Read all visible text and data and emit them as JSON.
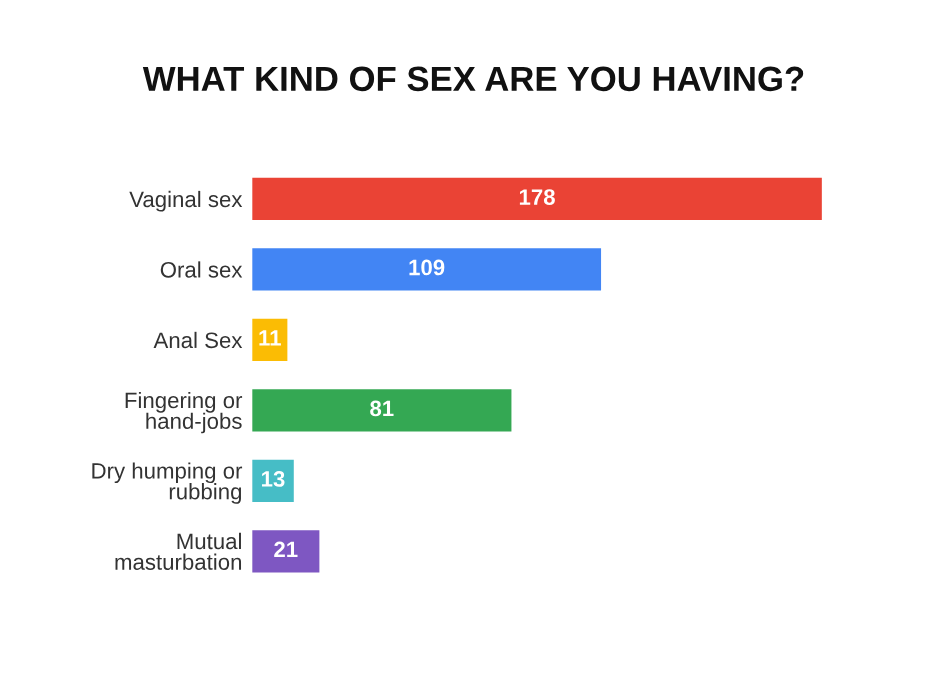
{
  "chart_data": {
    "type": "bar",
    "orientation": "horizontal",
    "title": "WHAT KIND OF SEX ARE YOU HAVING?",
    "categories": [
      "Vaginal sex",
      "Oral sex",
      "Anal Sex",
      "Fingering or\nhand-jobs",
      "Dry humping or\nrubbing",
      "Mutual\nmasturbation"
    ],
    "values": [
      178,
      109,
      11,
      81,
      13,
      21
    ],
    "colors": [
      "#ea4335",
      "#4285f4",
      "#fbbc04",
      "#34a853",
      "#46bdc6",
      "#7e57c2"
    ],
    "data_labels": true,
    "grid": false,
    "legend": false
  }
}
